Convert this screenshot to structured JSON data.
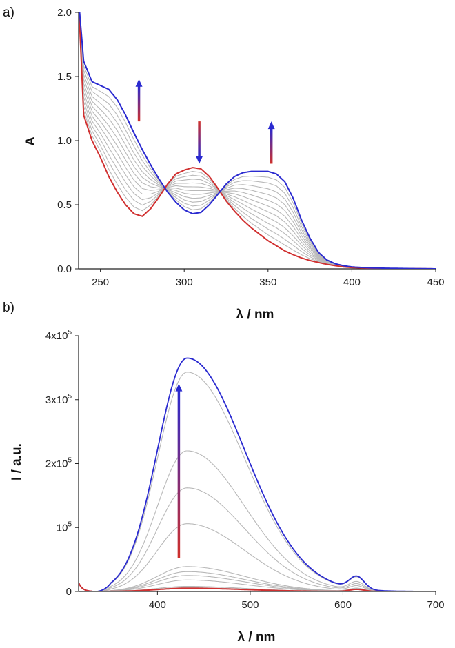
{
  "chart_data": [
    {
      "panel": "a)",
      "type": "line",
      "xlabel": "λ / nm",
      "ylabel": "A",
      "xlim": [
        237,
        450
      ],
      "ylim": [
        0,
        2.0
      ],
      "xticks": [
        "250",
        "300",
        "350",
        "400",
        "450"
      ],
      "yticks": [
        "0.0",
        "0.5",
        "1.0",
        "1.5",
        "2.0"
      ],
      "first_color": "#d03030",
      "last_color": "#2a2ad0",
      "mid_color": "#b8b8b8",
      "key_points": {
        "x": [
          237,
          240,
          245,
          250,
          255,
          260,
          265,
          270,
          275,
          280,
          285,
          290,
          295,
          300,
          305,
          310,
          315,
          320,
          325,
          330,
          335,
          340,
          345,
          350,
          355,
          360,
          365,
          370,
          375,
          380,
          385,
          390,
          395,
          400,
          410,
          420,
          430,
          450
        ],
        "first": [
          2.1,
          1.2,
          1.0,
          0.87,
          0.72,
          0.6,
          0.5,
          0.43,
          0.41,
          0.47,
          0.56,
          0.66,
          0.74,
          0.77,
          0.79,
          0.78,
          0.72,
          0.63,
          0.53,
          0.45,
          0.38,
          0.32,
          0.27,
          0.22,
          0.18,
          0.14,
          0.11,
          0.085,
          0.065,
          0.05,
          0.035,
          0.025,
          0.015,
          0.01,
          0.005,
          0.003,
          0.002,
          0.0
        ],
        "last": [
          2.1,
          1.62,
          1.46,
          1.43,
          1.4,
          1.32,
          1.2,
          1.06,
          0.93,
          0.81,
          0.7,
          0.6,
          0.52,
          0.46,
          0.43,
          0.44,
          0.5,
          0.58,
          0.66,
          0.72,
          0.75,
          0.76,
          0.76,
          0.76,
          0.74,
          0.68,
          0.55,
          0.38,
          0.24,
          0.13,
          0.07,
          0.04,
          0.025,
          0.015,
          0.008,
          0.005,
          0.003,
          0.0
        ]
      },
      "n_traces": 13,
      "arrows": [
        {
          "x": 273,
          "y_from": 1.15,
          "y_to": 1.48,
          "dir": "up"
        },
        {
          "x": 309,
          "y_from": 1.15,
          "y_to": 0.82,
          "dir": "down"
        },
        {
          "x": 352,
          "y_from": 0.82,
          "y_to": 1.15,
          "dir": "up"
        }
      ]
    },
    {
      "panel": "b)",
      "type": "line",
      "xlabel": "λ / nm",
      "ylabel": "I / a.u.",
      "xlim": [
        315,
        700
      ],
      "ylim": [
        0,
        400000
      ],
      "xticks": [
        "400",
        "500",
        "600",
        "700"
      ],
      "yticks": [
        {
          "base": "0",
          "exp": ""
        },
        {
          "base": "10",
          "exp": "5"
        },
        {
          "base": "2x10",
          "exp": "5"
        },
        {
          "base": "3x10",
          "exp": "5"
        },
        {
          "base": "4x10",
          "exp": "5"
        }
      ],
      "first_color": "#d03030",
      "last_color": "#2a2ad0",
      "mid_color": "#b8b8b8",
      "peak_x": 432,
      "peak_values": [
        5000,
        6000,
        8000,
        18000,
        25000,
        31000,
        39000,
        106000,
        162000,
        220000,
        343000,
        365000
      ],
      "side_peak_x": 615,
      "arrows": [
        {
          "x": 432,
          "y_from": 52000,
          "y_to": 325000,
          "dir": "up"
        }
      ]
    }
  ]
}
